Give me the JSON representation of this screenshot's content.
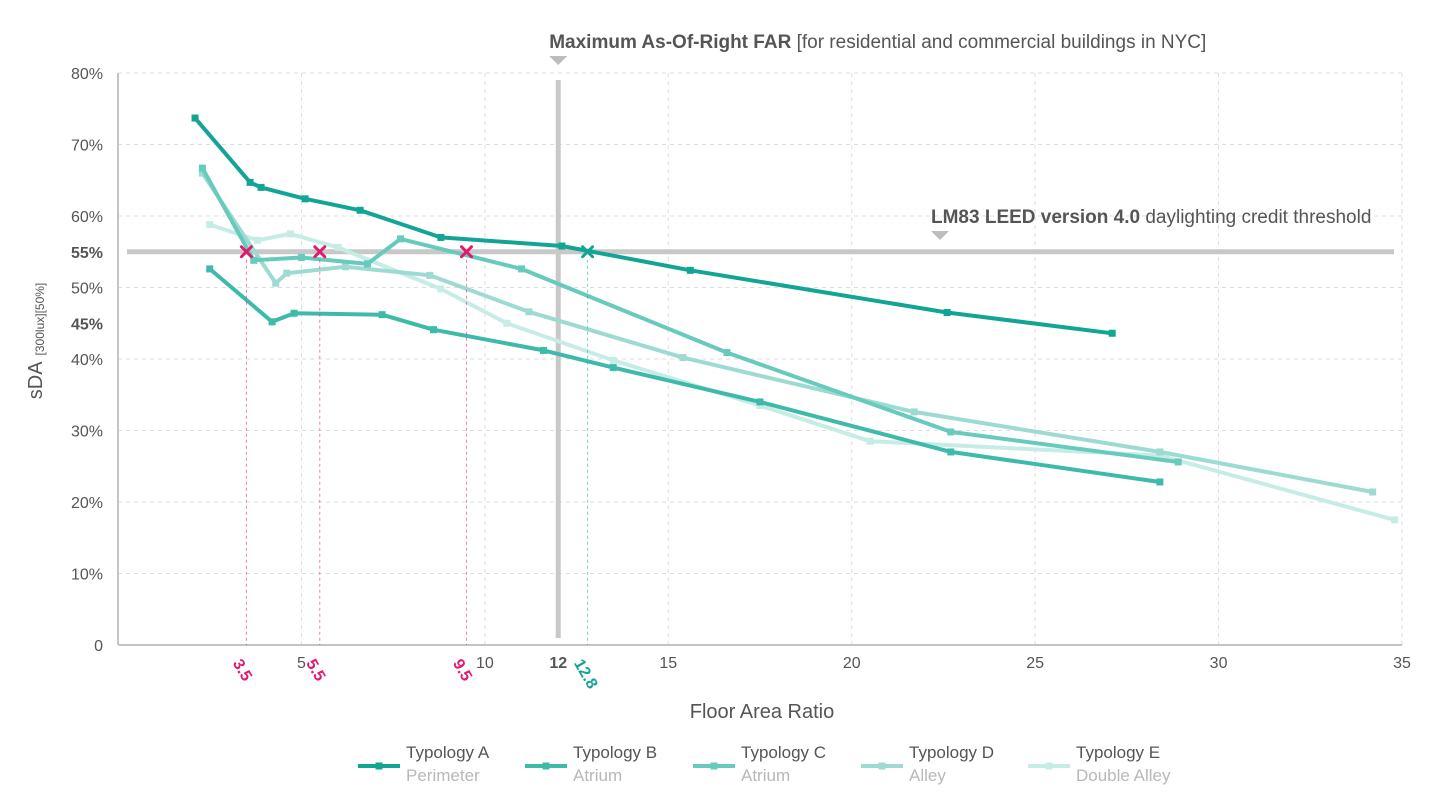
{
  "chart_data": {
    "type": "line",
    "xlabel": "Floor Area Ratio",
    "ylabel": "sDA",
    "ylabel_subscript": "[300lux][50%]",
    "xlim": [
      0,
      35
    ],
    "ylim": [
      0,
      80
    ],
    "x_ticks": [
      {
        "value": 5,
        "label": "5"
      },
      {
        "value": 10,
        "label": "10"
      },
      {
        "value": 12,
        "label": "12",
        "bold": true
      },
      {
        "value": 15,
        "label": "15"
      },
      {
        "value": 20,
        "label": "20"
      },
      {
        "value": 25,
        "label": "25"
      },
      {
        "value": 30,
        "label": "30"
      },
      {
        "value": 35,
        "label": "35"
      }
    ],
    "y_ticks": [
      {
        "value": 0,
        "label": "0"
      },
      {
        "value": 10,
        "label": "10%"
      },
      {
        "value": 20,
        "label": "20%"
      },
      {
        "value": 30,
        "label": "30%"
      },
      {
        "value": 40,
        "label": "40%"
      },
      {
        "value": 45,
        "label": "45%",
        "bold": true
      },
      {
        "value": 50,
        "label": "50%"
      },
      {
        "value": 55,
        "label": "55%",
        "bold": true
      },
      {
        "value": 60,
        "label": "60%"
      },
      {
        "value": 70,
        "label": "70%"
      },
      {
        "value": 80,
        "label": "80%"
      }
    ],
    "grid": true,
    "legend_position": "bottom",
    "series": [
      {
        "name": "Typology A",
        "subtitle": "Perimeter",
        "color": "#12a595",
        "x": [
          2.1,
          3.6,
          3.9,
          5.1,
          6.6,
          8.8,
          12.1,
          15.6,
          22.6,
          27.1
        ],
        "y": [
          73.7,
          64.7,
          64.0,
          62.4,
          60.8,
          57.0,
          55.8,
          52.4,
          46.5,
          43.6
        ]
      },
      {
        "name": "Typology B",
        "subtitle": "Atrium",
        "color": "#3dbaaa",
        "x": [
          2.5,
          4.2,
          4.8,
          7.2,
          8.6,
          11.6,
          13.5,
          17.5,
          22.7,
          28.4
        ],
        "y": [
          52.6,
          45.2,
          46.4,
          46.2,
          44.1,
          41.2,
          38.8,
          34.0,
          27.0,
          22.8
        ]
      },
      {
        "name": "Typology C",
        "subtitle": "Atrium",
        "color": "#66cbbd",
        "x": [
          2.3,
          3.7,
          5.0,
          6.8,
          7.7,
          11.0,
          16.6,
          22.7,
          28.9
        ],
        "y": [
          66.7,
          53.8,
          54.2,
          53.3,
          56.8,
          52.6,
          40.9,
          29.8,
          25.6
        ]
      },
      {
        "name": "Typology D",
        "subtitle": "Alley",
        "color": "#9ddbd2",
        "x": [
          2.3,
          4.3,
          4.6,
          6.2,
          8.5,
          11.2,
          15.4,
          21.7,
          28.4,
          34.2
        ],
        "y": [
          66.0,
          50.6,
          52.0,
          52.9,
          51.7,
          46.6,
          40.2,
          32.6,
          27.0,
          21.4
        ]
      },
      {
        "name": "Typology E",
        "subtitle": "Double Alley",
        "color": "#c6ece6",
        "x": [
          2.5,
          3.8,
          4.7,
          6.0,
          8.8,
          10.6,
          13.5,
          17.5,
          20.5,
          28.4,
          34.8
        ],
        "y": [
          58.8,
          56.6,
          57.5,
          55.6,
          49.8,
          45.0,
          39.8,
          33.5,
          28.5,
          26.5,
          17.5
        ]
      }
    ],
    "annotations": {
      "far_line": {
        "x": 12,
        "bold": "Maximum As-Of-Right FAR",
        "rest": " [for residential and commercial buildings in NYC]"
      },
      "leed_line": {
        "y": 55,
        "bold": "LM83 LEED version 4.0",
        "rest": " daylighting credit threshold"
      },
      "crossings": [
        {
          "x": 3.5,
          "label": "3.5",
          "color": "#e3186f"
        },
        {
          "x": 5.5,
          "label": "5.5",
          "color": "#e3186f"
        },
        {
          "x": 9.5,
          "label": "9.5",
          "color": "#e3186f"
        },
        {
          "x": 12.8,
          "label": "12.8",
          "color": "#12a595"
        }
      ]
    }
  },
  "colors": {
    "grid": "#dddddd",
    "axis": "#c4c4c4",
    "reference_line": "#c8c8c8",
    "text": "#555555",
    "legend_subtitle": "#b8b8b8"
  }
}
